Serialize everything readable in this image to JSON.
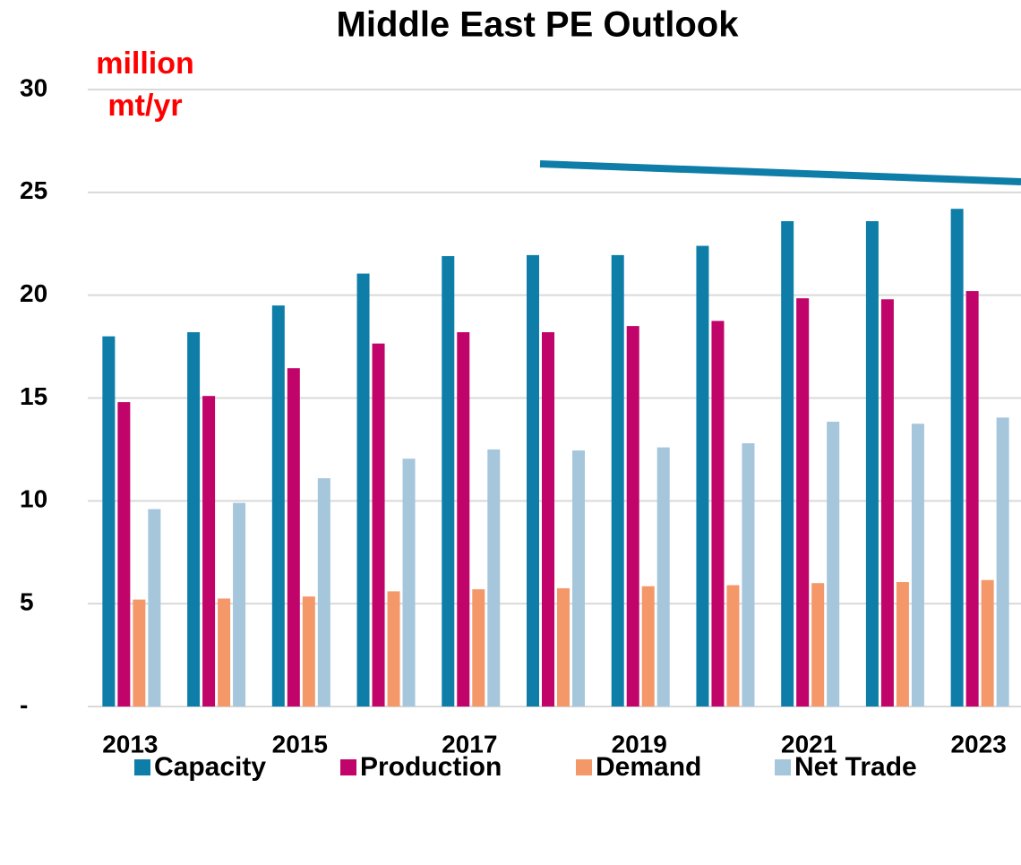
{
  "chart_data": {
    "type": "bar",
    "title": "Middle East PE Outlook",
    "annotation": [
      "million",
      "mt/yr"
    ],
    "categories": [
      "2013",
      null,
      "2015",
      null,
      "2017",
      null,
      "2019",
      null,
      "2021",
      null,
      "2023"
    ],
    "series": [
      {
        "name": "Capacity",
        "color": "#0e7ea8",
        "values": [
          18.0,
          18.2,
          19.5,
          21.05,
          21.9,
          21.95,
          21.95,
          22.4,
          23.6,
          23.6,
          24.2
        ]
      },
      {
        "name": "Production",
        "color": "#c0046a",
        "values": [
          14.8,
          15.1,
          16.45,
          17.65,
          18.2,
          18.2,
          18.5,
          18.75,
          19.85,
          19.8,
          20.2
        ]
      },
      {
        "name": "Demand",
        "color": "#f4986a",
        "values": [
          5.2,
          5.25,
          5.35,
          5.6,
          5.7,
          5.75,
          5.85,
          5.9,
          6.0,
          6.05,
          6.15
        ]
      },
      {
        "name": "Net Trade",
        "color": "#a6c6dc",
        "values": [
          9.6,
          9.9,
          11.1,
          12.05,
          12.5,
          12.45,
          12.6,
          12.8,
          13.85,
          13.75,
          14.05
        ]
      }
    ],
    "ylim": [
      0,
      30
    ],
    "yticks": [
      {
        "value": 0,
        "label": "-"
      },
      5,
      10,
      15,
      20,
      25,
      30
    ],
    "grid": true
  }
}
